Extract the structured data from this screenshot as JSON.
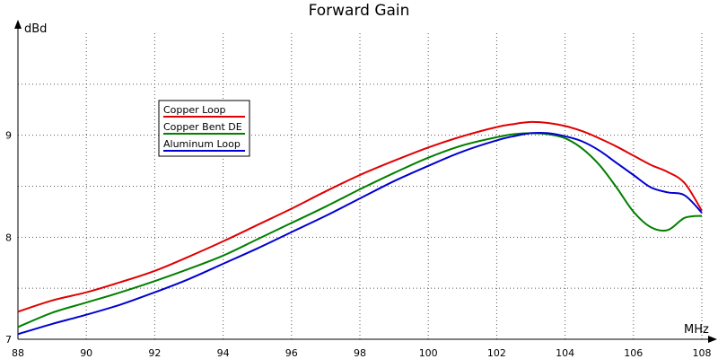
{
  "chart_data": {
    "type": "line",
    "title": "Forward Gain",
    "xlabel": "MHz",
    "ylabel": "dBd",
    "xlim": [
      88,
      108
    ],
    "ylim": [
      7,
      10
    ],
    "xticks": [
      "88",
      "90",
      "92",
      "94",
      "96",
      "98",
      "100",
      "102",
      "104",
      "106",
      "108"
    ],
    "yticks": [
      "7",
      "8",
      "9"
    ],
    "grid": true,
    "legend_position": "upper-left",
    "x": [
      88,
      89,
      90,
      91,
      92,
      93,
      94,
      95,
      96,
      97,
      98,
      99,
      100,
      101,
      102,
      102.5,
      103,
      103.5,
      104,
      104.5,
      105,
      105.5,
      106,
      106.5,
      107,
      107.5,
      108
    ],
    "series": [
      {
        "name": "Copper Loop",
        "color": "#e00000",
        "values": [
          7.27,
          7.38,
          7.46,
          7.56,
          7.67,
          7.81,
          7.96,
          8.12,
          8.28,
          8.45,
          8.61,
          8.75,
          8.88,
          8.99,
          9.08,
          9.11,
          9.13,
          9.12,
          9.09,
          9.04,
          8.97,
          8.89,
          8.8,
          8.71,
          8.64,
          8.53,
          8.26
        ]
      },
      {
        "name": "Copper Bent DE",
        "color": "#008000",
        "values": [
          7.12,
          7.26,
          7.36,
          7.46,
          7.57,
          7.69,
          7.82,
          7.98,
          8.14,
          8.3,
          8.47,
          8.63,
          8.78,
          8.9,
          8.98,
          9.01,
          9.02,
          9.01,
          8.97,
          8.87,
          8.71,
          8.49,
          8.25,
          8.1,
          8.07,
          8.19,
          8.21
        ]
      },
      {
        "name": "Aluminum Loop",
        "color": "#0000d0",
        "values": [
          7.05,
          7.15,
          7.24,
          7.34,
          7.46,
          7.59,
          7.74,
          7.89,
          8.05,
          8.21,
          8.38,
          8.55,
          8.7,
          8.84,
          8.95,
          8.99,
          9.02,
          9.02,
          8.99,
          8.94,
          8.85,
          8.73,
          8.61,
          8.49,
          8.44,
          8.41,
          8.24
        ]
      }
    ]
  }
}
